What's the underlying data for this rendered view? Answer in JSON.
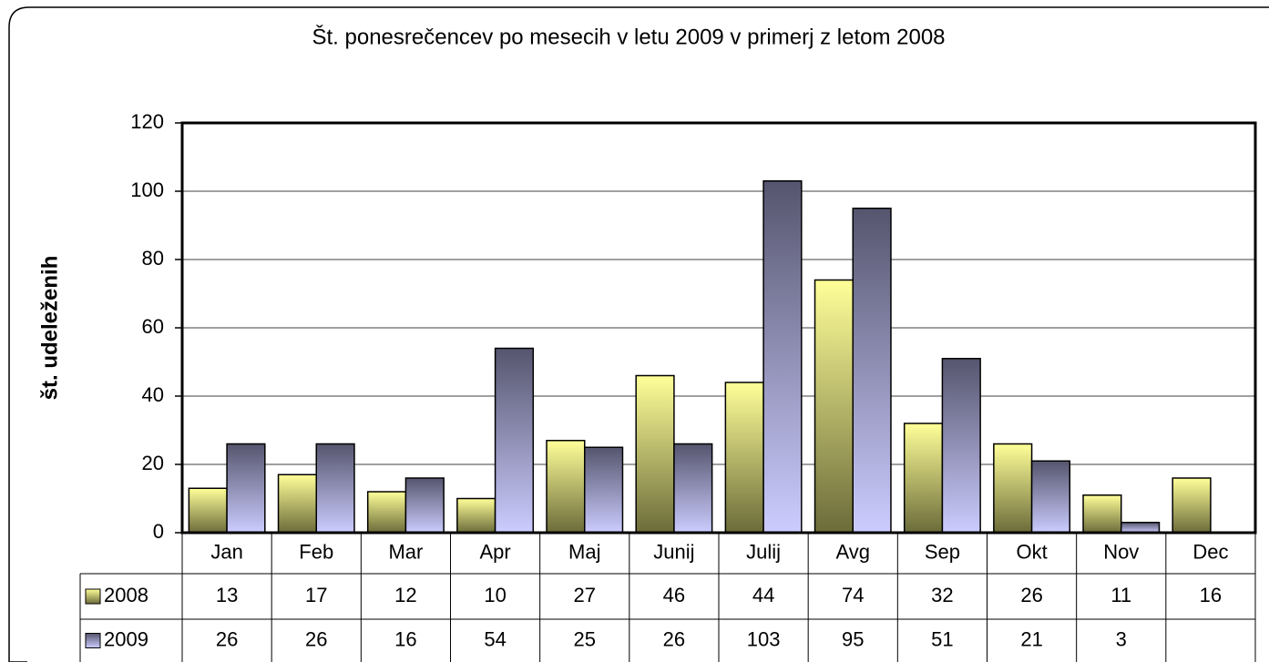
{
  "chart_data": {
    "type": "bar",
    "title": "Št. ponesrečencev po mesecih v letu 2009 v primerj z  letom 2008",
    "ylabel": "št. udeleženih",
    "categories": [
      "Jan",
      "Feb",
      "Mar",
      "Apr",
      "Maj",
      "Junij",
      "Julij",
      "Avg",
      "Sep",
      "Okt",
      "Nov",
      "Dec"
    ],
    "series": [
      {
        "name": "2008",
        "color": "#ffff99",
        "gradient": [
          "#ffff99",
          "#6b6b3a"
        ],
        "values": [
          13,
          17,
          12,
          10,
          27,
          46,
          44,
          74,
          32,
          26,
          11,
          16
        ]
      },
      {
        "name": "2009",
        "color": "#ccccff",
        "gradient": [
          "#55556e",
          "#ccccff"
        ],
        "values": [
          26,
          26,
          16,
          54,
          25,
          26,
          103,
          95,
          51,
          21,
          3,
          null
        ]
      }
    ],
    "ylim": [
      0,
      120
    ],
    "yticks": [
      0,
      20,
      40,
      60,
      80,
      100,
      120
    ],
    "grid": true
  }
}
